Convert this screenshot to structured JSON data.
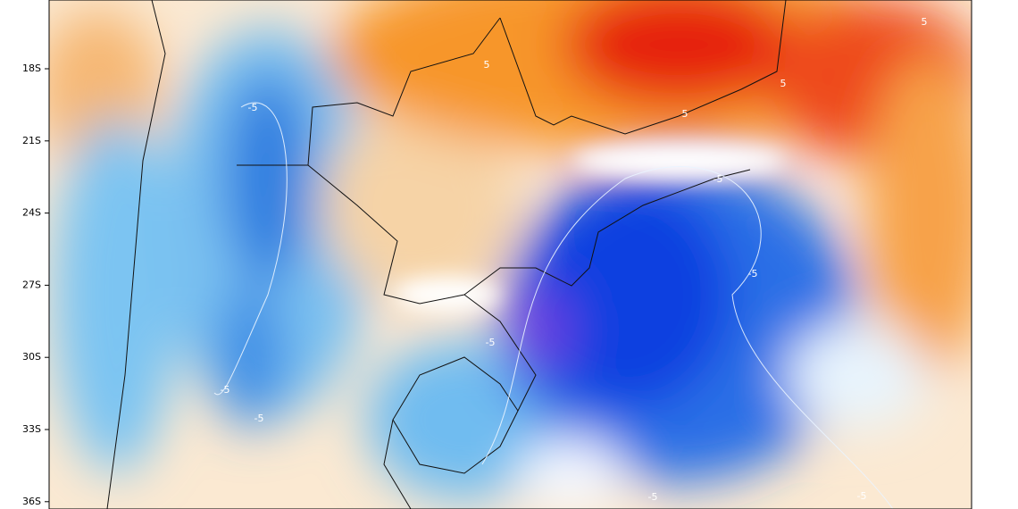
{
  "map": {
    "latitude_labels": [
      "18S",
      "21S",
      "24S",
      "27S",
      "30S",
      "33S",
      "36S"
    ],
    "contour_labels": [
      "5",
      "5",
      "5",
      "5",
      "-5",
      "-5",
      "-5",
      "-5",
      "-5",
      "-5",
      "-5",
      "-5"
    ]
  }
}
